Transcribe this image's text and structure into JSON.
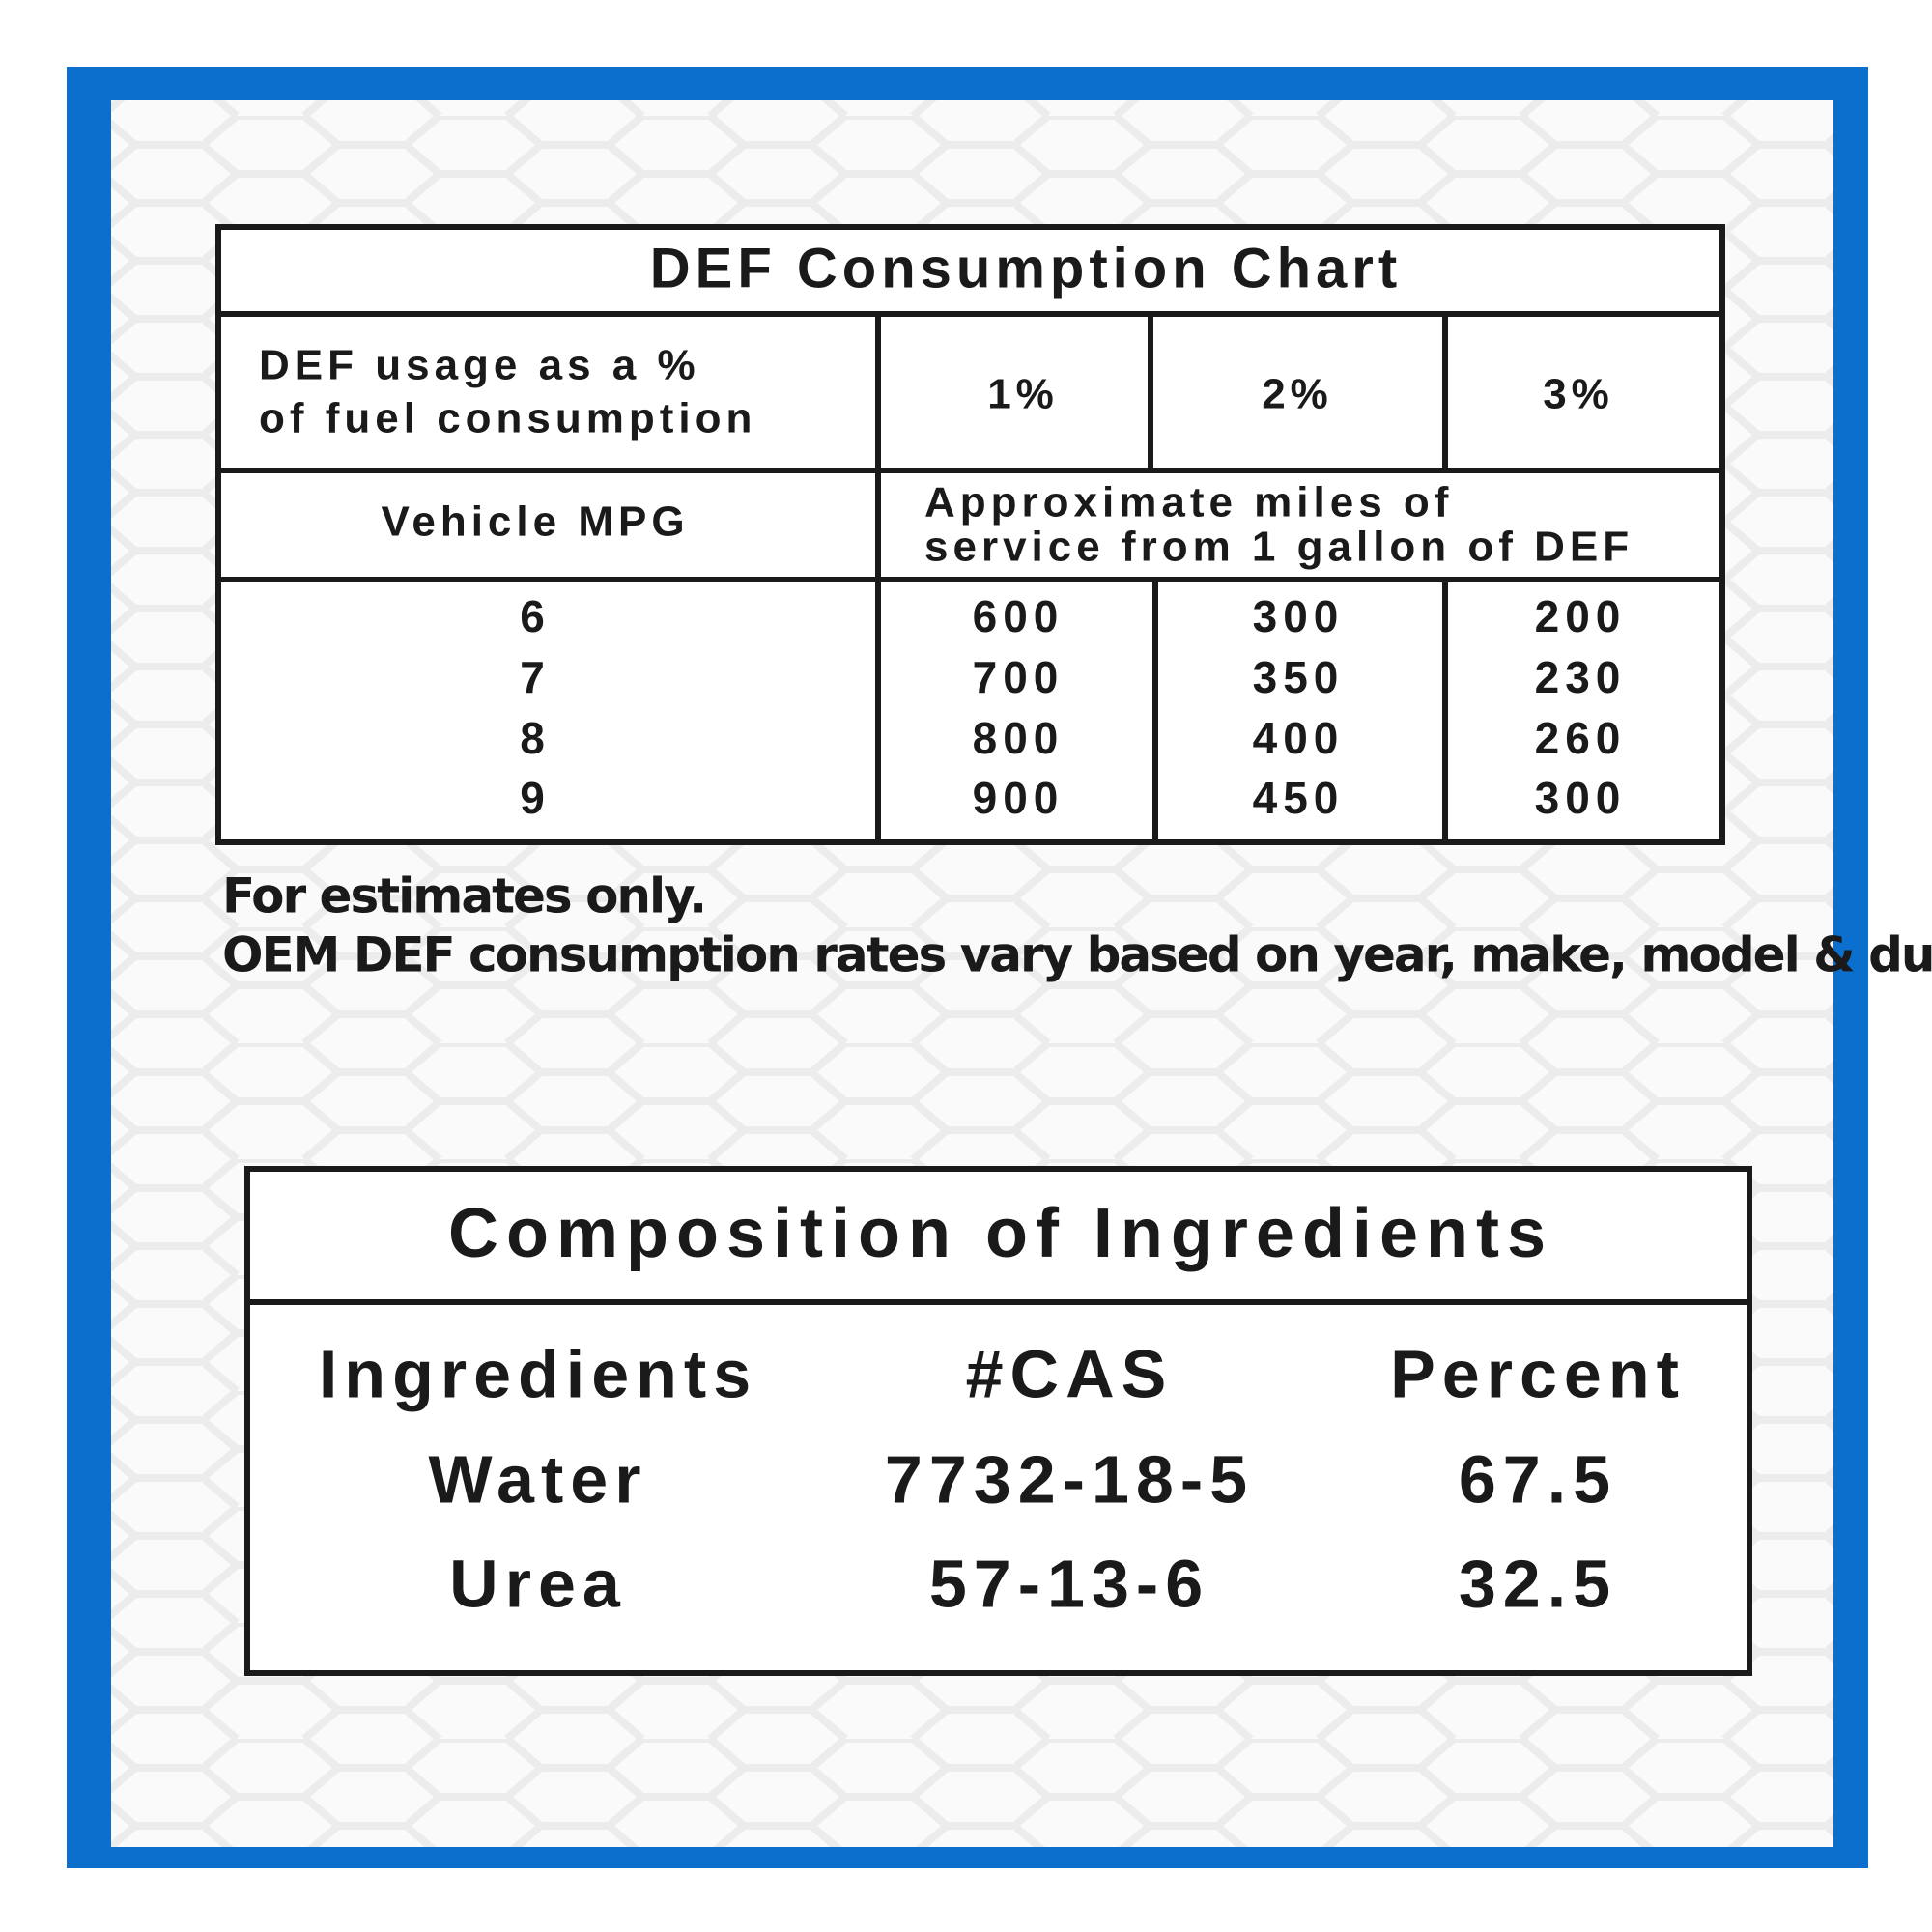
{
  "consumption_chart": {
    "title": "DEF Consumption Chart",
    "usage_label": [
      "DEF usage as a %",
      "of fuel consumption"
    ],
    "usage_levels": [
      "1%",
      "2%",
      "3%"
    ],
    "mpg_label": "Vehicle MPG",
    "miles_label": [
      "Approximate miles of",
      "service from 1 gallon of DEF"
    ],
    "rows": [
      [
        6,
        600,
        300,
        200
      ],
      [
        7,
        700,
        350,
        230
      ],
      [
        8,
        800,
        400,
        260
      ],
      [
        9,
        900,
        450,
        300
      ]
    ]
  },
  "notes": [
    "For estimates only.",
    "OEM DEF consumption rates vary based on year, make, model & duty cycle."
  ],
  "composition": {
    "title": "Composition of Ingredients",
    "headers": [
      "Ingredients",
      "#CAS",
      "Percent"
    ],
    "rows": [
      [
        "Water",
        "7732-18-5",
        67.5
      ],
      [
        "Urea",
        "57-13-6",
        32.5
      ]
    ]
  }
}
